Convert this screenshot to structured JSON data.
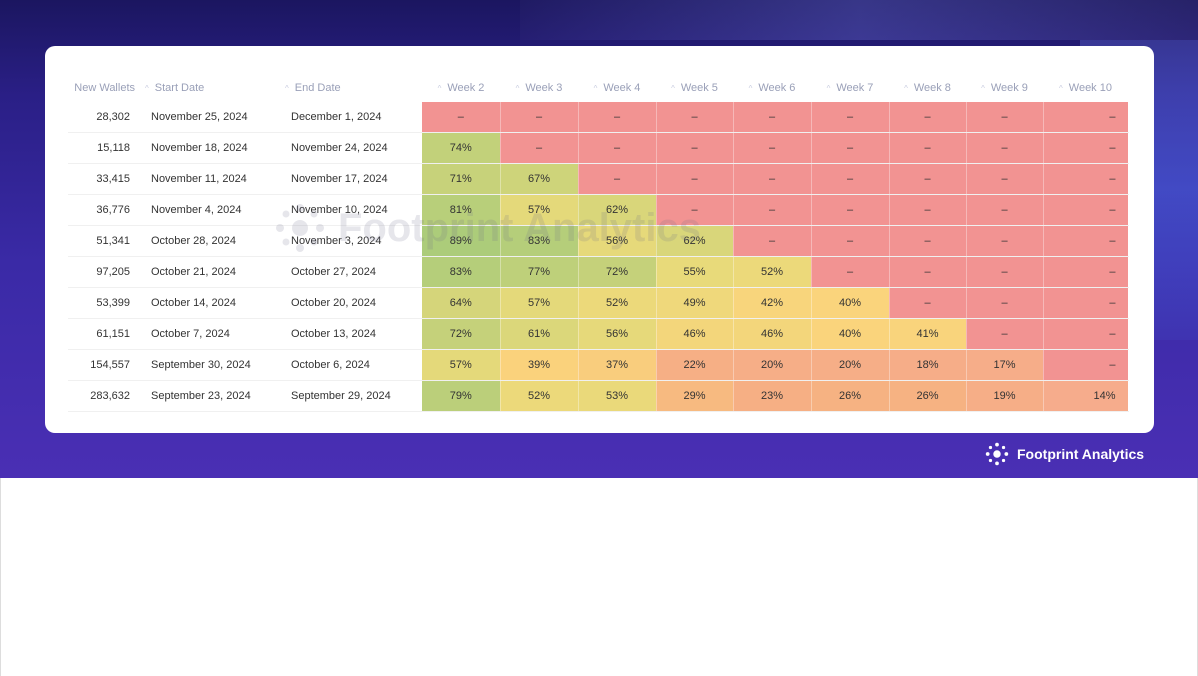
{
  "chart_data": {
    "type": "table",
    "title": "",
    "columns": [
      "New Wallets",
      "Start Date",
      "End Date",
      "Week 2",
      "Week 3",
      "Week 4",
      "Week 5",
      "Week 6",
      "Week 7",
      "Week 8",
      "Week 9",
      "Week 10"
    ],
    "rows": [
      {
        "new_wallets": "28,302",
        "start": "November 25, 2024",
        "end": "December 1, 2024",
        "weeks": [
          null,
          null,
          null,
          null,
          null,
          null,
          null,
          null,
          null
        ]
      },
      {
        "new_wallets": "15,118",
        "start": "November 18, 2024",
        "end": "November 24, 2024",
        "weeks": [
          74,
          null,
          null,
          null,
          null,
          null,
          null,
          null,
          null
        ]
      },
      {
        "new_wallets": "33,415",
        "start": "November 11, 2024",
        "end": "November 17, 2024",
        "weeks": [
          71,
          67,
          null,
          null,
          null,
          null,
          null,
          null,
          null
        ]
      },
      {
        "new_wallets": "36,776",
        "start": "November 4, 2024",
        "end": "November 10, 2024",
        "weeks": [
          81,
          57,
          62,
          null,
          null,
          null,
          null,
          null,
          null
        ]
      },
      {
        "new_wallets": "51,341",
        "start": "October 28, 2024",
        "end": "November 3, 2024",
        "weeks": [
          89,
          83,
          56,
          62,
          null,
          null,
          null,
          null,
          null
        ]
      },
      {
        "new_wallets": "97,205",
        "start": "October 21, 2024",
        "end": "October 27, 2024",
        "weeks": [
          83,
          77,
          72,
          55,
          52,
          null,
          null,
          null,
          null
        ]
      },
      {
        "new_wallets": "53,399",
        "start": "October 14, 2024",
        "end": "October 20, 2024",
        "weeks": [
          64,
          57,
          52,
          49,
          42,
          40,
          null,
          null,
          null
        ]
      },
      {
        "new_wallets": "61,151",
        "start": "October 7, 2024",
        "end": "October 13, 2024",
        "weeks": [
          72,
          61,
          56,
          46,
          46,
          40,
          41,
          null,
          null
        ]
      },
      {
        "new_wallets": "154,557",
        "start": "September 30, 2024",
        "end": "October 6, 2024",
        "weeks": [
          57,
          39,
          37,
          22,
          20,
          20,
          18,
          17,
          null
        ]
      },
      {
        "new_wallets": "283,632",
        "start": "September 23, 2024",
        "end": "September 29, 2024",
        "weeks": [
          79,
          52,
          53,
          29,
          23,
          26,
          26,
          19,
          14
        ]
      }
    ],
    "empty_label": "–",
    "unit": "%"
  },
  "watermark": "Footprint Analytics",
  "brand": "Footprint Analytics",
  "colors": {
    "empty": "#f29392",
    "banner": "#3a2aa6"
  }
}
